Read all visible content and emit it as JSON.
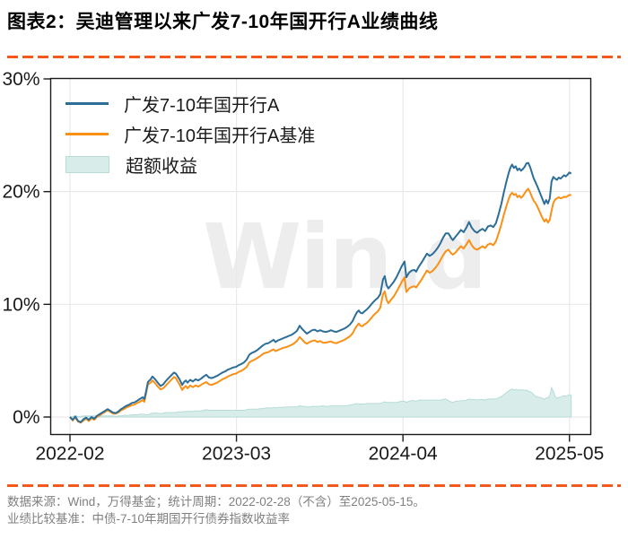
{
  "title": "图表2：吴迪管理以来广发7-10年国开行A业绩曲线",
  "watermark": "Win.d",
  "footer": {
    "line1": "数据来源：Wind，万得基金；统计周期：2022-02-28（不含）至2025-05-15。",
    "line2": "业绩比较基准：中债-7-10年期国开行债券指数收益率"
  },
  "colors": {
    "divider": "#f4581c",
    "grid": "#e9e9e9",
    "frame": "#1a1a1a",
    "axis_text": "#1a1a1a",
    "footer_text": "#808080",
    "watermark": "#ededed"
  },
  "chart_data": {
    "type": "line",
    "title": "",
    "xlabel": "",
    "ylabel": "",
    "x_axis": {
      "unit": "months since 2022-02-28",
      "range_months": [
        -1.6,
        40.65
      ],
      "ticks": [
        {
          "m": 0,
          "label": "2022-02"
        },
        {
          "m": 13,
          "label": "2023-03"
        },
        {
          "m": 26,
          "label": "2024-04"
        },
        {
          "m": 39,
          "label": "2025-05"
        }
      ]
    },
    "y_axis": {
      "unit": "cumulative return %",
      "range": [
        -1.45,
        30.05
      ],
      "ticks": [
        {
          "v": 0,
          "label": "0%"
        },
        {
          "v": 10,
          "label": "10%"
        },
        {
          "v": 20,
          "label": "20%"
        },
        {
          "v": 30,
          "label": "30%"
        }
      ]
    },
    "legend_position": "upper-left",
    "grid": true,
    "series": [
      {
        "name": "广发7-10年国开行A",
        "type": "line",
        "color": "#2d6e99"
      },
      {
        "name": "广发7-10年国开行A基准",
        "type": "line",
        "color": "#fa9016"
      },
      {
        "name": "超额收益",
        "type": "area",
        "color": "#d8ecea",
        "edge_color": "#b7dcd8"
      }
    ],
    "points_format": "[months_since_2022-02-28, fund_pct, benchmark_pct]; excess area = fund - benchmark",
    "points": [
      [
        0,
        0,
        0
      ],
      [
        0.21,
        -0.25,
        -0.3
      ],
      [
        0.42,
        0.05,
        -0.05
      ],
      [
        0.63,
        -0.35,
        -0.4
      ],
      [
        0.84,
        -0.45,
        -0.5
      ],
      [
        1.05,
        -0.2,
        -0.3
      ],
      [
        1.26,
        -0.05,
        -0.15
      ],
      [
        1.47,
        -0.25,
        -0.35
      ],
      [
        1.68,
        0,
        -0.1
      ],
      [
        1.89,
        -0.15,
        -0.25
      ],
      [
        2.1,
        0.1,
        0
      ],
      [
        2.31,
        0.25,
        0.15
      ],
      [
        2.52,
        0.4,
        0.3
      ],
      [
        2.73,
        0.55,
        0.45
      ],
      [
        2.94,
        0.7,
        0.6
      ],
      [
        3.15,
        0.55,
        0.45
      ],
      [
        3.36,
        0.4,
        0.3
      ],
      [
        3.57,
        0.35,
        0.3
      ],
      [
        3.78,
        0.5,
        0.4
      ],
      [
        3.99,
        0.7,
        0.6
      ],
      [
        4.2,
        0.85,
        0.7
      ],
      [
        4.41,
        1,
        0.85
      ],
      [
        4.62,
        1.1,
        0.95
      ],
      [
        4.83,
        1.25,
        1.05
      ],
      [
        5.04,
        1.3,
        1.1
      ],
      [
        5.25,
        1.45,
        1.25
      ],
      [
        5.46,
        1.6,
        1.35
      ],
      [
        5.67,
        1.75,
        1.5
      ],
      [
        5.81,
        1.6,
        1.35
      ],
      [
        5.95,
        2.3,
        2.1
      ],
      [
        6.09,
        3.1,
        2.9
      ],
      [
        6.3,
        3.35,
        3.05
      ],
      [
        6.44,
        3.6,
        3.25
      ],
      [
        6.65,
        3.35,
        3
      ],
      [
        6.86,
        3.05,
        2.7
      ],
      [
        7.07,
        2.75,
        2.45
      ],
      [
        7.28,
        2.9,
        2.55
      ],
      [
        7.49,
        3.2,
        2.8
      ],
      [
        7.7,
        3.45,
        3.05
      ],
      [
        7.91,
        3.7,
        3.3
      ],
      [
        8.12,
        3.95,
        3.55
      ],
      [
        8.27,
        3.85,
        3.45
      ],
      [
        8.41,
        3.6,
        3.15
      ],
      [
        8.55,
        3.35,
        2.9
      ],
      [
        8.76,
        2.85,
        2.4
      ],
      [
        8.9,
        3.1,
        2.6
      ],
      [
        9.04,
        3.25,
        2.75
      ],
      [
        9.18,
        3.05,
        2.55
      ],
      [
        9.39,
        3.3,
        2.8
      ],
      [
        9.6,
        3.15,
        2.65
      ],
      [
        9.81,
        3.35,
        2.8
      ],
      [
        10.02,
        3.25,
        2.7
      ],
      [
        10.23,
        3.4,
        2.85
      ],
      [
        10.44,
        3.6,
        3
      ],
      [
        10.65,
        3.75,
        3.1
      ],
      [
        10.86,
        3.5,
        2.9
      ],
      [
        11.07,
        3.45,
        2.85
      ],
      [
        11.28,
        3.55,
        2.95
      ],
      [
        11.49,
        3.65,
        3.05
      ],
      [
        11.7,
        3.8,
        3.2
      ],
      [
        11.91,
        3.95,
        3.35
      ],
      [
        12.12,
        4.05,
        3.45
      ],
      [
        12.33,
        4.2,
        3.6
      ],
      [
        12.54,
        4.3,
        3.7
      ],
      [
        12.75,
        4.4,
        3.8
      ],
      [
        12.96,
        4.45,
        3.85
      ],
      [
        13.17,
        4.6,
        4
      ],
      [
        13.38,
        4.7,
        4.1
      ],
      [
        13.59,
        4.85,
        4.25
      ],
      [
        13.8,
        5.1,
        4.45
      ],
      [
        14.01,
        5.55,
        4.85
      ],
      [
        14.22,
        5.7,
        5
      ],
      [
        14.43,
        5.8,
        5.1
      ],
      [
        14.64,
        5.95,
        5.25
      ],
      [
        14.85,
        6.15,
        5.4
      ],
      [
        15.06,
        6.35,
        5.6
      ],
      [
        15.27,
        6.5,
        5.7
      ],
      [
        15.48,
        6.55,
        5.75
      ],
      [
        15.69,
        6.7,
        5.9
      ],
      [
        15.9,
        6.85,
        6
      ],
      [
        16.04,
        6.65,
        5.85
      ],
      [
        16.25,
        6.8,
        5.95
      ],
      [
        16.46,
        6.9,
        6.05
      ],
      [
        16.67,
        7,
        6.15
      ],
      [
        16.88,
        7.1,
        6.2
      ],
      [
        17.09,
        7.2,
        6.3
      ],
      [
        17.3,
        7.3,
        6.4
      ],
      [
        17.51,
        7.45,
        6.55
      ],
      [
        17.72,
        7.65,
        6.75
      ],
      [
        17.93,
        8.1,
        7.1
      ],
      [
        18.14,
        7.8,
        6.85
      ],
      [
        18.35,
        7.55,
        6.6
      ],
      [
        18.49,
        7.4,
        6.5
      ],
      [
        18.7,
        7.55,
        6.65
      ],
      [
        18.91,
        7.7,
        6.75
      ],
      [
        19.12,
        7.75,
        6.8
      ],
      [
        19.33,
        7.6,
        6.65
      ],
      [
        19.54,
        7.7,
        6.75
      ],
      [
        19.75,
        7.6,
        6.6
      ],
      [
        19.96,
        7.55,
        6.6
      ],
      [
        20.17,
        7.6,
        6.65
      ],
      [
        20.38,
        7.7,
        6.7
      ],
      [
        20.59,
        7.6,
        6.6
      ],
      [
        20.8,
        7.55,
        6.55
      ],
      [
        21.01,
        7.65,
        6.65
      ],
      [
        21.22,
        7.75,
        6.75
      ],
      [
        21.43,
        7.85,
        6.85
      ],
      [
        21.64,
        8,
        7
      ],
      [
        21.85,
        8.2,
        7.15
      ],
      [
        22.06,
        8.5,
        7.4
      ],
      [
        22.27,
        9,
        7.85
      ],
      [
        22.41,
        9.3,
        8.1
      ],
      [
        22.55,
        9.45,
        8.3
      ],
      [
        22.69,
        9.25,
        8.1
      ],
      [
        22.83,
        9.2,
        8.05
      ],
      [
        22.97,
        9.35,
        8.2
      ],
      [
        23.18,
        9.55,
        8.35
      ],
      [
        23.39,
        9.8,
        8.6
      ],
      [
        23.6,
        10.1,
        8.9
      ],
      [
        23.81,
        10.35,
        9.15
      ],
      [
        24.02,
        10.55,
        9.35
      ],
      [
        24.23,
        10.9,
        9.7
      ],
      [
        24.44,
        12.2,
        10.9
      ],
      [
        24.58,
        12.5,
        11.15
      ],
      [
        24.72,
        11.7,
        10.4
      ],
      [
        24.86,
        11.4,
        10.1
      ],
      [
        25.07,
        11.7,
        10.4
      ],
      [
        25.28,
        12,
        10.7
      ],
      [
        25.49,
        12.4,
        11.1
      ],
      [
        25.7,
        12.9,
        11.55
      ],
      [
        25.91,
        13.4,
        12
      ],
      [
        26.12,
        13.8,
        12.4
      ],
      [
        26.26,
        12.4,
        11.1
      ],
      [
        26.47,
        12.8,
        11.4
      ],
      [
        26.68,
        13,
        11.55
      ],
      [
        26.89,
        13.05,
        11.6
      ],
      [
        27.03,
        12.9,
        11.5
      ],
      [
        27.24,
        13.35,
        11.85
      ],
      [
        27.45,
        13.7,
        12.2
      ],
      [
        27.66,
        14.1,
        12.6
      ],
      [
        27.87,
        14.5,
        13
      ],
      [
        28.08,
        14.3,
        12.8
      ],
      [
        28.29,
        14.45,
        12.95
      ],
      [
        28.5,
        14.7,
        13.2
      ],
      [
        28.71,
        15,
        13.5
      ],
      [
        28.92,
        15.4,
        13.9
      ],
      [
        29.13,
        15.9,
        14.35
      ],
      [
        29.34,
        16.3,
        14.7
      ],
      [
        29.55,
        16.3,
        14.85
      ],
      [
        29.76,
        15.9,
        14.55
      ],
      [
        29.9,
        15.7,
        14.4
      ],
      [
        30.11,
        16,
        14.6
      ],
      [
        30.32,
        16.3,
        14.9
      ],
      [
        30.53,
        16.6,
        15.15
      ],
      [
        30.74,
        16.4,
        14.95
      ],
      [
        30.95,
        16.8,
        15.3
      ],
      [
        31.16,
        17.3,
        15.7
      ],
      [
        31.37,
        16.8,
        15.25
      ],
      [
        31.58,
        16.5,
        14.95
      ],
      [
        31.79,
        16.35,
        14.85
      ],
      [
        32,
        16.55,
        15
      ],
      [
        32.21,
        16.7,
        15.15
      ],
      [
        32.42,
        16.5,
        15
      ],
      [
        32.63,
        16.9,
        15.3
      ],
      [
        32.84,
        17,
        15.4
      ],
      [
        33.05,
        16.85,
        15.25
      ],
      [
        33.26,
        17.2,
        15.6
      ],
      [
        33.47,
        18,
        16.3
      ],
      [
        33.68,
        18.9,
        17.1
      ],
      [
        33.89,
        20,
        18
      ],
      [
        34.1,
        21,
        18.8
      ],
      [
        34.24,
        21.6,
        19.3
      ],
      [
        34.38,
        22.1,
        19.7
      ],
      [
        34.52,
        22.4,
        19.9
      ],
      [
        34.66,
        22.1,
        19.7
      ],
      [
        34.8,
        22.25,
        19.8
      ],
      [
        34.94,
        21.9,
        19.5
      ],
      [
        35.08,
        22.05,
        19.65
      ],
      [
        35.22,
        21.85,
        19.45
      ],
      [
        35.36,
        22,
        19.6
      ],
      [
        35.5,
        22.2,
        19.85
      ],
      [
        35.64,
        22.5,
        20.1
      ],
      [
        35.78,
        22.55,
        20.25
      ],
      [
        35.92,
        22.2,
        19.95
      ],
      [
        36.06,
        21.7,
        19.55
      ],
      [
        36.2,
        21.2,
        19.2
      ],
      [
        36.34,
        20.85,
        19
      ],
      [
        36.48,
        20.5,
        18.7
      ],
      [
        36.62,
        20.1,
        18.35
      ],
      [
        36.83,
        19.5,
        17.8
      ],
      [
        37.04,
        18.9,
        17.35
      ],
      [
        37.18,
        19.25,
        17.55
      ],
      [
        37.32,
        18.95,
        17.25
      ],
      [
        37.46,
        19.4,
        17.5
      ],
      [
        37.6,
        20.9,
        18.3
      ],
      [
        37.74,
        21.3,
        19
      ],
      [
        37.88,
        21.15,
        19.3
      ],
      [
        38.02,
        21.05,
        19.4
      ],
      [
        38.16,
        21.25,
        19.5
      ],
      [
        38.3,
        21.15,
        19.4
      ],
      [
        38.44,
        21.3,
        19.45
      ],
      [
        38.58,
        21.45,
        19.55
      ],
      [
        38.72,
        21.35,
        19.5
      ],
      [
        38.86,
        21.5,
        19.6
      ],
      [
        39,
        21.7,
        19.7
      ],
      [
        39.14,
        21.6,
        19.7
      ]
    ]
  }
}
